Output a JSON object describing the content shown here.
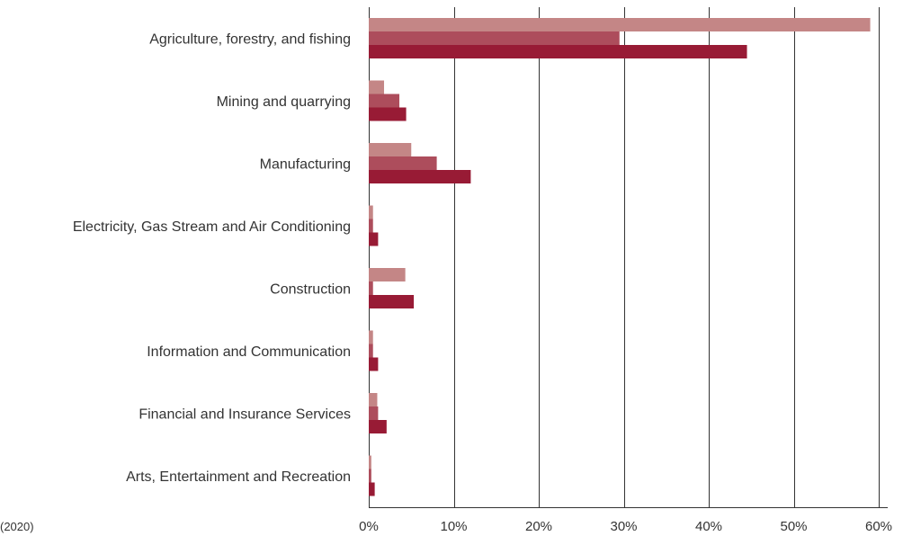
{
  "source_note": "(2020)",
  "chart_data": {
    "type": "bar",
    "orientation": "horizontal",
    "categories": [
      "Agriculture, forestry, and fishing",
      "Mining and quarrying",
      "Manufacturing",
      "Electricity, Gas Stream and Air Conditioning",
      "Construction",
      "Information and Communication",
      "Financial and Insurance Services",
      "Arts, Entertainment and Recreation"
    ],
    "series": [
      {
        "color": "#c48686",
        "values": [
          59.0,
          1.8,
          5.0,
          0.5,
          4.3,
          0.5,
          1.0,
          0.3
        ]
      },
      {
        "color": "#ad4d5c",
        "values": [
          29.5,
          3.6,
          8.0,
          0.5,
          0.5,
          0.5,
          1.1,
          0.3
        ]
      },
      {
        "color": "#981b35",
        "values": [
          44.5,
          4.4,
          12.0,
          1.1,
          5.3,
          1.1,
          2.1,
          0.7
        ]
      }
    ],
    "xlim": [
      0,
      60
    ],
    "xticks": [
      0,
      10,
      20,
      30,
      40,
      50,
      60
    ],
    "xtick_labels": [
      "0%",
      "10%",
      "20%",
      "30%",
      "40%",
      "50%",
      "60%"
    ],
    "grid": true
  }
}
